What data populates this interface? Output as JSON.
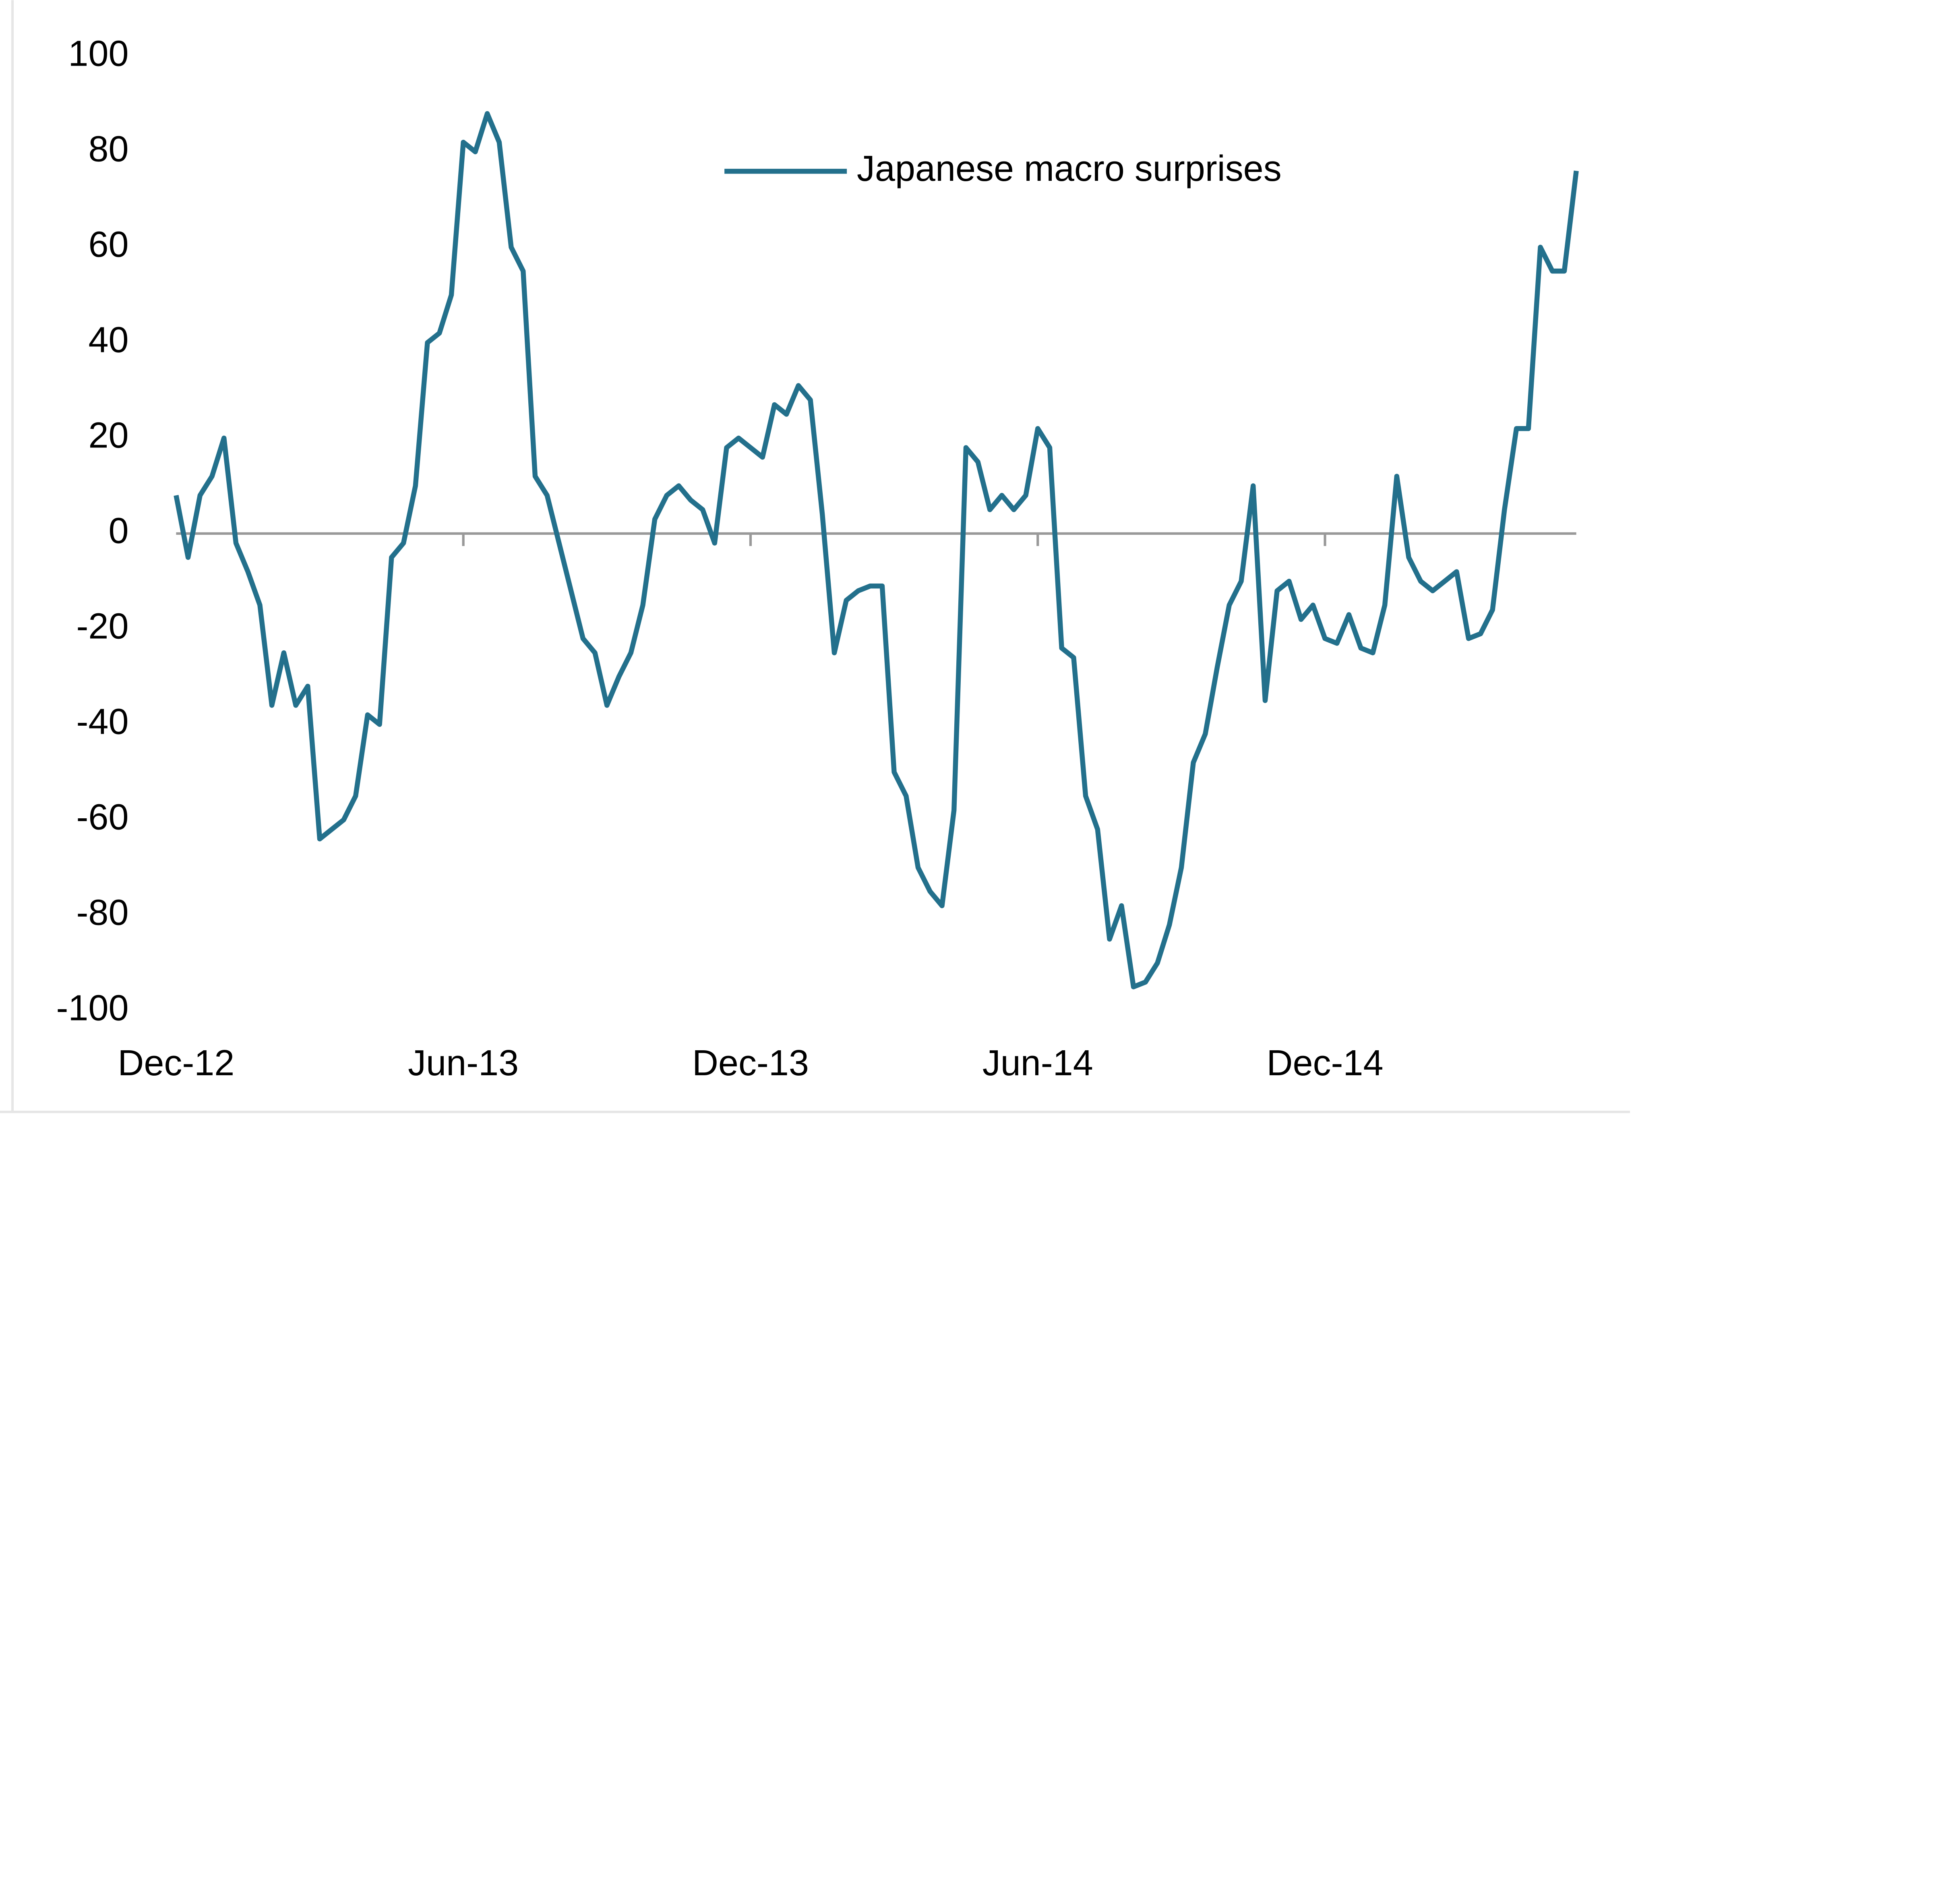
{
  "chart_data": {
    "type": "line",
    "categories": [
      "Dec-12",
      null,
      null,
      null,
      null,
      null,
      null,
      null,
      null,
      null,
      null,
      null,
      null,
      null,
      null,
      null,
      null,
      null,
      null,
      null,
      null,
      null,
      null,
      null,
      "Jun-13",
      null,
      null,
      null,
      null,
      null,
      null,
      null,
      null,
      null,
      null,
      null,
      null,
      null,
      null,
      null,
      null,
      null,
      null,
      null,
      null,
      null,
      null,
      null,
      "Dec-13",
      null,
      null,
      null,
      null,
      null,
      null,
      null,
      null,
      null,
      null,
      null,
      null,
      null,
      null,
      null,
      null,
      null,
      null,
      null,
      null,
      null,
      null,
      null,
      "Jun-14",
      null,
      null,
      null,
      null,
      null,
      null,
      null,
      null,
      null,
      null,
      null,
      null,
      null,
      null,
      null,
      null,
      null,
      null,
      null,
      null,
      null,
      null,
      null,
      "Dec-14",
      null,
      null,
      null,
      null,
      null,
      null,
      null,
      null,
      null,
      null,
      null,
      null,
      null,
      null,
      null,
      null,
      null,
      null,
      null,
      null,
      null
    ],
    "series": [
      {
        "name": "Japanese macro surprises",
        "color": "#23708c",
        "values": [
          8,
          -5,
          8,
          12,
          20,
          -2,
          -8,
          -15,
          -36,
          -25,
          -36,
          -32,
          -64,
          -62,
          -60,
          -55,
          -38,
          -40,
          -5,
          -2,
          10,
          40,
          42,
          50,
          82,
          80,
          88,
          82,
          60,
          55,
          12,
          8,
          -2,
          -12,
          -22,
          -25,
          -36,
          -30,
          -25,
          -15,
          3,
          8,
          10,
          7,
          5,
          -2,
          18,
          20,
          18,
          16,
          27,
          25,
          31,
          28,
          4,
          -25,
          -14,
          -12,
          -11,
          -11,
          -50,
          -55,
          -70,
          -75,
          -78,
          -58,
          18,
          15,
          5,
          8,
          5,
          8,
          22,
          18,
          -24,
          -26,
          -55,
          -62,
          -85,
          -78,
          -95,
          -94,
          -90,
          -82,
          -70,
          -48,
          -42,
          -28,
          -15,
          -10,
          10,
          -35,
          -12,
          -10,
          -18,
          -15,
          -22,
          -23,
          -17,
          -24,
          -25,
          -15,
          12,
          -5,
          -10,
          -12,
          -10,
          -8,
          -22,
          -21,
          -16,
          5,
          22,
          22,
          60,
          55,
          55,
          76
        ]
      }
    ],
    "ylim": [
      -100,
      100
    ],
    "yticks": [
      -100,
      -80,
      -60,
      -40,
      -20,
      0,
      20,
      40,
      60,
      80,
      100
    ],
    "grid": false,
    "legend": "top"
  }
}
